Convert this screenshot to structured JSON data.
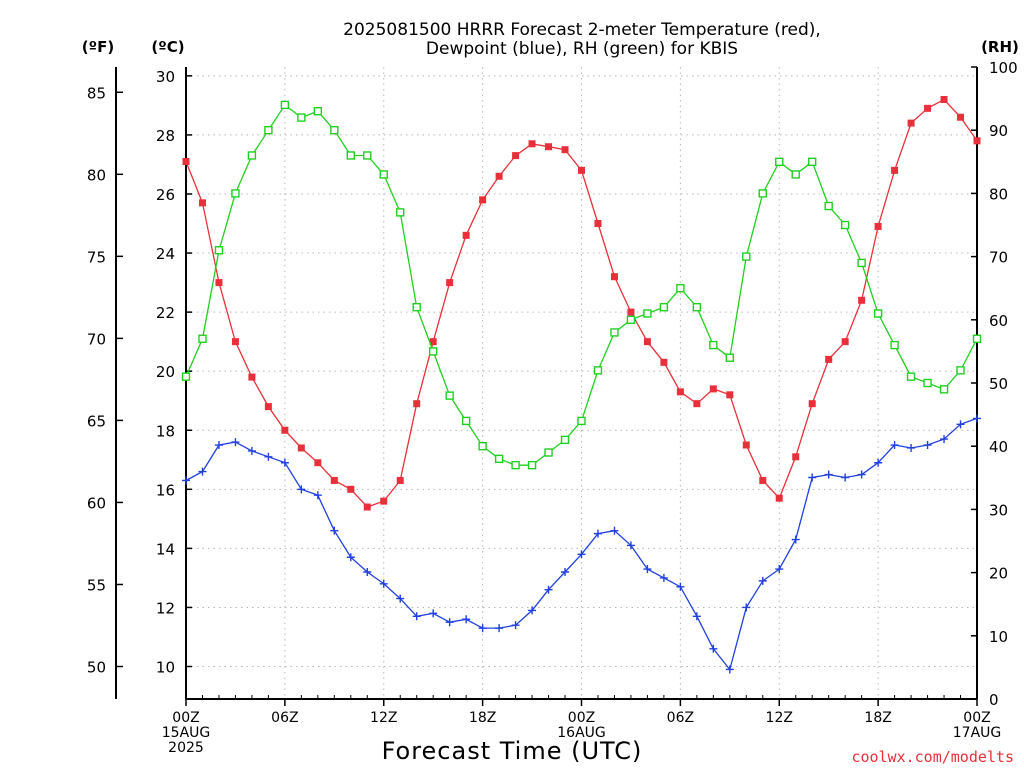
{
  "title_line1": "2025081500 HRRR Forecast 2-meter Temperature (red),",
  "title_line2": "Dewpoint (blue), RH (green) for KBIS",
  "unit_f": "(ºF)",
  "unit_c": "(ºC)",
  "unit_rh": "(RH)",
  "xlabel": "Forecast Time (UTC)",
  "credit": "coolwx.com/modelts",
  "x_tick_labels": [
    {
      "h": 0,
      "lines": [
        "00Z",
        "15AUG",
        "2025"
      ]
    },
    {
      "h": 6,
      "lines": [
        "06Z"
      ]
    },
    {
      "h": 12,
      "lines": [
        "12Z"
      ]
    },
    {
      "h": 18,
      "lines": [
        "18Z"
      ]
    },
    {
      "h": 24,
      "lines": [
        "00Z",
        "16AUG"
      ]
    },
    {
      "h": 30,
      "lines": [
        "06Z"
      ]
    },
    {
      "h": 36,
      "lines": [
        "12Z"
      ]
    },
    {
      "h": 42,
      "lines": [
        "18Z"
      ]
    },
    {
      "h": 48,
      "lines": [
        "00Z",
        "17AUG"
      ]
    }
  ],
  "chart_data": {
    "type": "line",
    "x_unit": "forecast hour",
    "x_range": [
      0,
      48
    ],
    "x_tick_step": 6,
    "y_celsius_range": [
      8.9,
      30.3
    ],
    "y_celsius_ticks": [
      10,
      12,
      14,
      16,
      18,
      20,
      22,
      24,
      26,
      28,
      30
    ],
    "y_fahrenheit_ticks": [
      "50",
      "55",
      "60",
      "65",
      "70",
      "75",
      "80",
      "85"
    ],
    "y_rh_range": [
      0,
      100
    ],
    "y_rh_ticks": [
      "0",
      "10",
      "20",
      "30",
      "40",
      "50",
      "60",
      "70",
      "80",
      "90",
      "100"
    ],
    "grid": true,
    "series": [
      {
        "name": "2-meter Temperature",
        "axis": "celsius",
        "color": "#e8303a",
        "marker": "filled-square",
        "values": [
          27.1,
          25.7,
          23.0,
          21.0,
          19.8,
          18.8,
          18.0,
          17.4,
          16.9,
          16.3,
          16.0,
          15.4,
          15.6,
          16.3,
          18.9,
          21.0,
          23.0,
          24.6,
          25.8,
          26.6,
          27.3,
          27.7,
          27.6,
          27.5,
          26.8,
          25.0,
          23.2,
          22.0,
          21.0,
          20.3,
          19.3,
          18.9,
          19.4,
          19.2,
          17.5,
          16.3,
          15.7,
          17.1,
          18.9,
          20.4,
          21.0,
          22.4,
          24.9,
          26.8,
          28.4,
          28.9,
          29.2,
          28.6,
          27.8
        ]
      },
      {
        "name": "Dewpoint",
        "axis": "celsius",
        "color": "#2040e0",
        "marker": "plus",
        "values": [
          16.3,
          16.6,
          17.5,
          17.6,
          17.3,
          17.1,
          16.9,
          16.0,
          15.8,
          14.6,
          13.7,
          13.2,
          12.8,
          12.3,
          11.7,
          11.8,
          11.5,
          11.6,
          11.3,
          11.3,
          11.4,
          11.9,
          12.6,
          13.2,
          13.8,
          14.5,
          14.6,
          14.1,
          13.3,
          13.0,
          12.7,
          11.7,
          10.6,
          9.9,
          12.0,
          12.9,
          13.3,
          14.3,
          16.4,
          16.5,
          16.4,
          16.5,
          16.9,
          17.5,
          17.4,
          17.5,
          17.7,
          18.2,
          18.4
        ]
      },
      {
        "name": "RH",
        "axis": "rh",
        "color": "#20d020",
        "marker": "open-square",
        "values": [
          51,
          57,
          71,
          80,
          86,
          90,
          94,
          92,
          93,
          90,
          86,
          86,
          83,
          77,
          62,
          55,
          48,
          44,
          40,
          38,
          37,
          37,
          39,
          41,
          44,
          52,
          58,
          60,
          61,
          62,
          65,
          62,
          56,
          54,
          70,
          80,
          85,
          83,
          85,
          78,
          75,
          69,
          61,
          56,
          51,
          50,
          49,
          52,
          57
        ]
      }
    ]
  }
}
